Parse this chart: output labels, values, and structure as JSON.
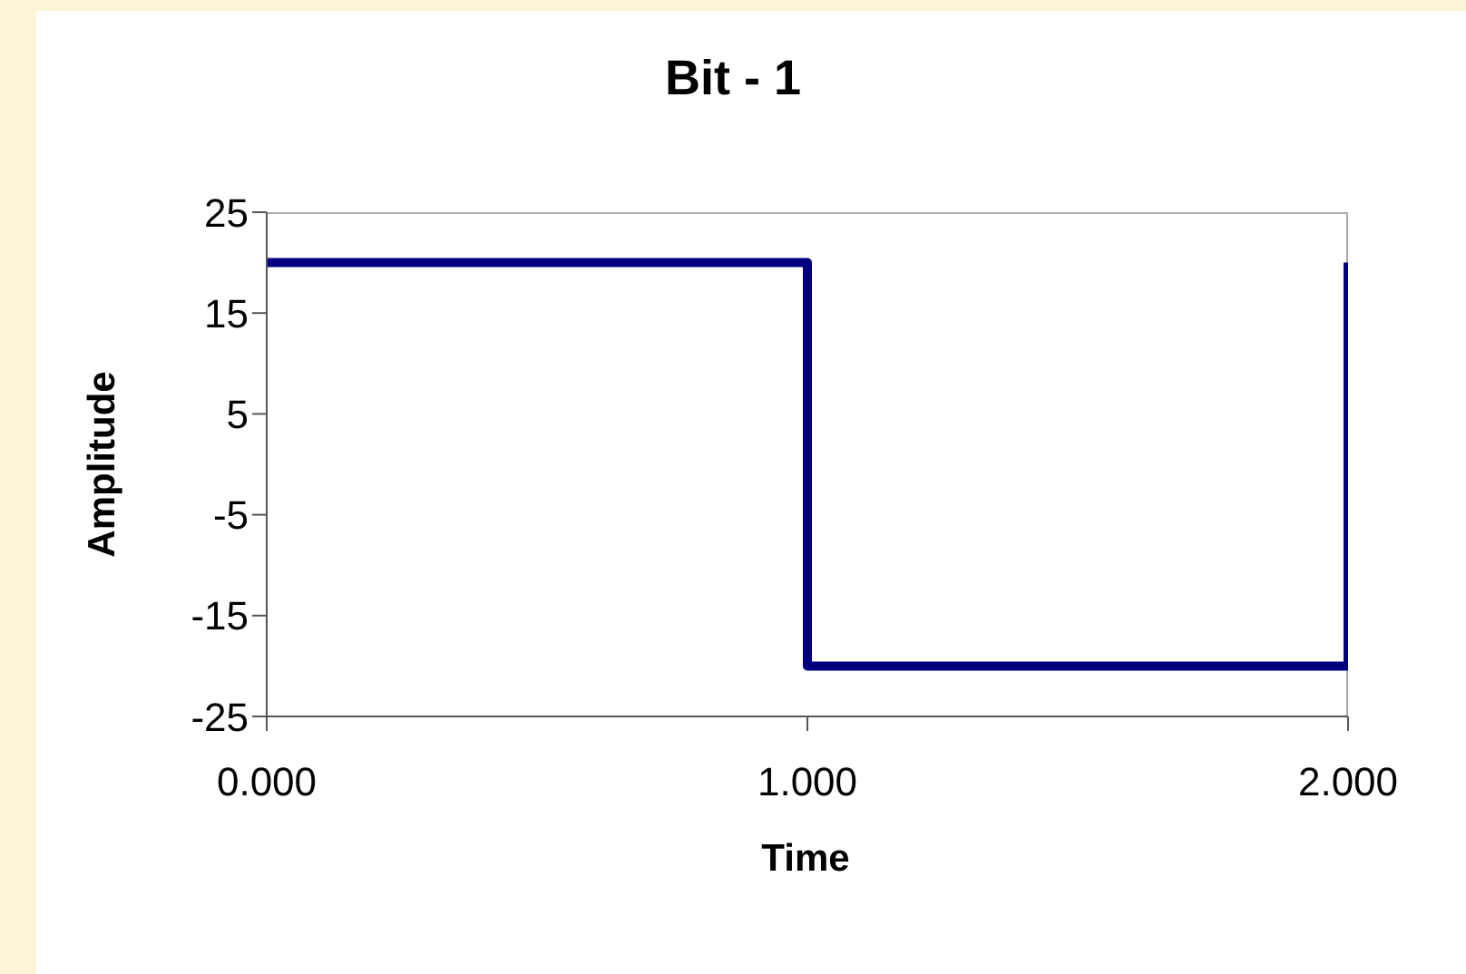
{
  "chart_data": {
    "type": "line",
    "title": "Bit - 1",
    "xlabel": "Time",
    "ylabel": "Amplitude",
    "series": [
      {
        "color": "#000080",
        "x": [
          0,
          1,
          1,
          2,
          2
        ],
        "values": [
          20,
          20,
          -20,
          -20,
          20
        ]
      }
    ],
    "xlim": [
      0,
      2
    ],
    "xticks": [
      {
        "value": 0,
        "label": "0.000"
      },
      {
        "value": 1,
        "label": "1.000"
      },
      {
        "value": 2,
        "label": "2.000"
      }
    ],
    "ylim": [
      -25,
      25
    ],
    "yticks": [
      -25,
      -15,
      -5,
      5,
      15,
      25
    ],
    "grid": false,
    "marker": "none",
    "line_style": "solid"
  }
}
